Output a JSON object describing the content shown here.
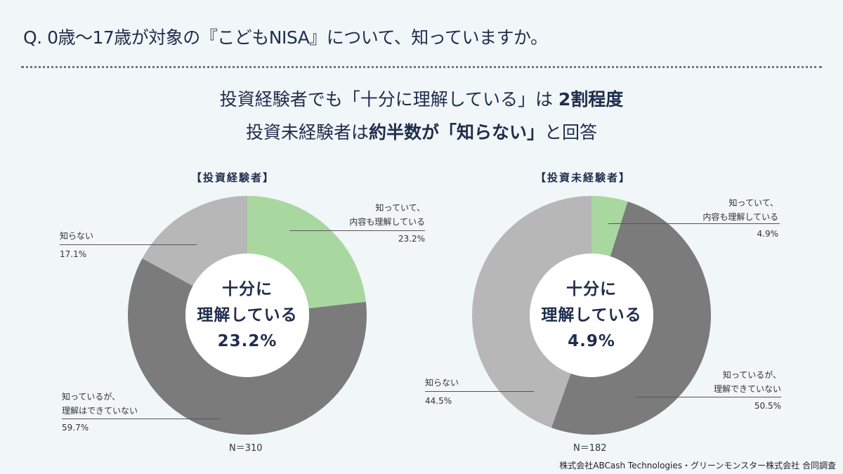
{
  "question": "Q.  0歳〜17歳が対象の『こどもNISA』について、知っていますか。",
  "headline": {
    "line1_normal": "投資経験者でも「十分に理解している」は",
    "line1_bold": "2割程度",
    "line2_a": "投資未経験者は",
    "line2_bold": "約半数が「知らない」",
    "line2_b": "と回答"
  },
  "credit": "株式会社ABCash Technologies・グリーンモンスター株式会社 合同調査",
  "colors": {
    "understand": "#a8d8a0",
    "not_understand": "#7b7b7b",
    "unknown": "#b7b7b7",
    "background": "#f1f6f8",
    "text": "#1f2d4d"
  },
  "chart_data": [
    {
      "type": "pie",
      "donut": true,
      "title": "【投資経験者】",
      "n_label": "N＝310",
      "center": {
        "line1": "十分に",
        "line2": "理解している",
        "value": "23.2%"
      },
      "slices": [
        {
          "label_1": "知っていて、",
          "label_2": "内容も理解している",
          "value": 23.2,
          "value_label": "23.2%"
        },
        {
          "label_1": "知っているが、",
          "label_2": "理解はできていない",
          "value": 59.7,
          "value_label": "59.7%"
        },
        {
          "label_1": "知らない",
          "label_2": "",
          "value": 17.1,
          "value_label": "17.1%"
        }
      ]
    },
    {
      "type": "pie",
      "donut": true,
      "title": "【投資未経験者】",
      "n_label": "N＝182",
      "center": {
        "line1": "十分に",
        "line2": "理解している",
        "value": "4.9%"
      },
      "slices": [
        {
          "label_1": "知っていて、",
          "label_2": "内容も理解している",
          "value": 4.9,
          "value_label": "4.9%"
        },
        {
          "label_1": "知っているが、",
          "label_2": "理解できていない",
          "value": 50.5,
          "value_label": "50.5%"
        },
        {
          "label_1": "知らない",
          "label_2": "",
          "value": 44.5,
          "value_label": "44.5%"
        }
      ]
    }
  ]
}
